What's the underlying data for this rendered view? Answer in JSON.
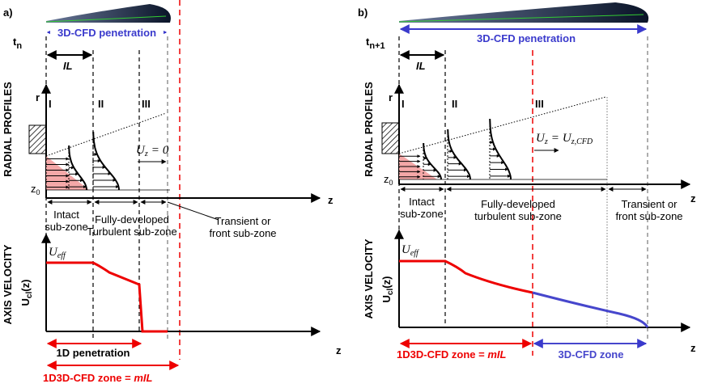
{
  "panels": [
    {
      "label": "a)",
      "time": {
        "base": "t",
        "sub": "n"
      },
      "penetration": "3D-CFD penetration",
      "intact_length": "IL",
      "radial_axis_title": "RADIAL PROFILES",
      "r_label": "r",
      "zones": [
        "I",
        "II",
        "III"
      ],
      "velocity_note": {
        "left": "U",
        "left_sub": "z",
        "op": "=",
        "right": "0"
      },
      "z0": {
        "base": "z",
        "sub": "0"
      },
      "z_label": "z",
      "subzones": [
        [
          "Intact",
          "sub-zone"
        ],
        [
          "Fully-developed",
          "Turbulent sub-zone"
        ],
        [
          "Transient or",
          "front sub-zone"
        ]
      ],
      "axis_velocity_title": "AXIS VELOCITY",
      "ucl": {
        "base": "U",
        "sub": "cl",
        "rest": "(z)"
      },
      "ueff": {
        "base": "U",
        "sub": "eff"
      },
      "z_label_lower": "z",
      "one_d_penetration": "1D penetration",
      "zone": {
        "text": "1D3D-CFD zone = ",
        "italic": "mIL"
      }
    },
    {
      "label": "b)",
      "time": {
        "base": "t",
        "sub": "n+1"
      },
      "penetration": "3D-CFD penetration",
      "intact_length": "IL",
      "radial_axis_title": "RADIAL PROFILES",
      "r_label": "r",
      "zones": [
        "I",
        "II",
        "III"
      ],
      "velocity_note": {
        "left": "U",
        "left_sub": "z",
        "op": "=",
        "right": "U",
        "right_sub": "z,CFD"
      },
      "z0": {
        "base": "z",
        "sub": "0"
      },
      "z_label": "z",
      "subzones": [
        [
          "Intact",
          "sub-zone"
        ],
        [
          "Fully-developed",
          "turbulent sub-zone"
        ],
        [
          "Transient or",
          "front sub-zone"
        ]
      ],
      "axis_velocity_title": "AXIS VELOCITY",
      "ucl": {
        "base": "U",
        "sub": "cl",
        "rest": "(z)"
      },
      "ueff": {
        "base": "U",
        "sub": "eff"
      },
      "z_label_lower": "z",
      "zone": {
        "text": "1D3D-CFD zone = ",
        "italic": "mIL"
      },
      "cfd_zone": "3D-CFD zone"
    }
  ]
}
